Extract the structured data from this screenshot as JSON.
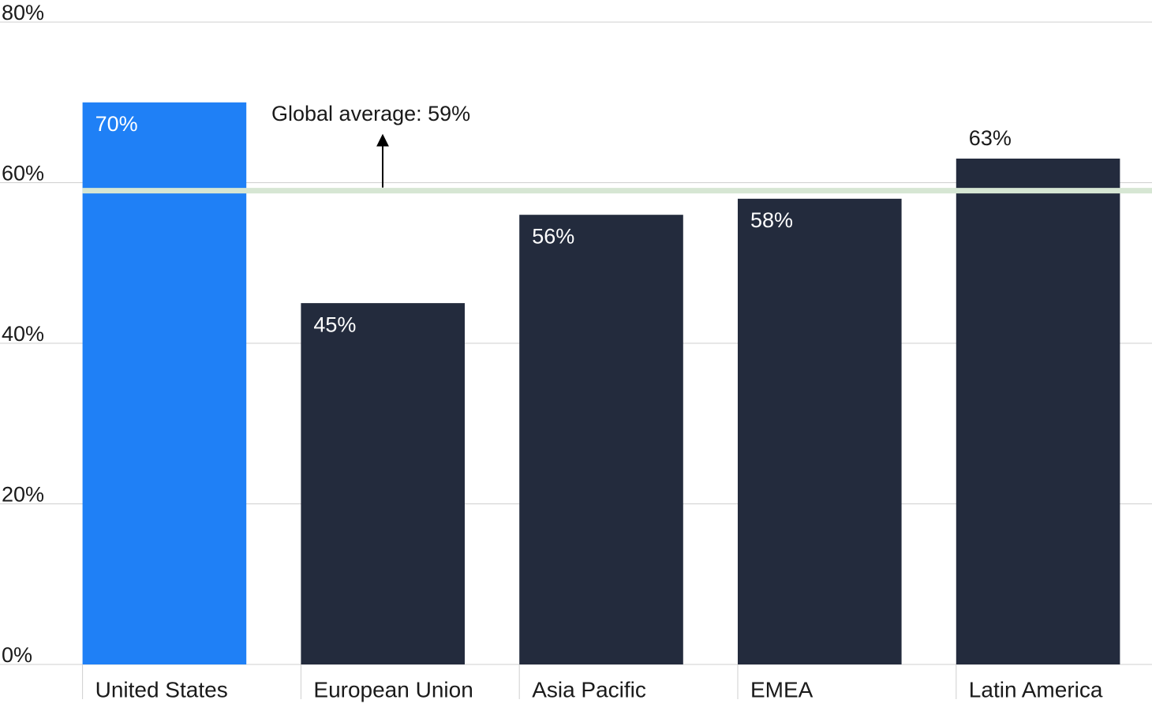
{
  "chart_data": {
    "type": "bar",
    "categories": [
      "United States",
      "European Union",
      "Asia Pacific",
      "EMEA",
      "Latin America"
    ],
    "values": [
      70,
      45,
      56,
      58,
      63
    ],
    "value_labels": [
      "70%",
      "45%",
      "56%",
      "58%",
      "63%"
    ],
    "colors": [
      "#1f80f6",
      "#232b3d",
      "#232b3d",
      "#232b3d",
      "#232b3d"
    ],
    "ylim": [
      0,
      80
    ],
    "yticks": [
      {
        "value": 0,
        "label": "0%"
      },
      {
        "value": 20,
        "label": "20%"
      },
      {
        "value": 40,
        "label": "40%"
      },
      {
        "value": 60,
        "label": "60%"
      },
      {
        "value": 80,
        "label": "80%"
      }
    ],
    "grid": true,
    "reference_line": {
      "value": 59,
      "label": "Global average: 59%",
      "color": "#d6e6d3"
    }
  }
}
